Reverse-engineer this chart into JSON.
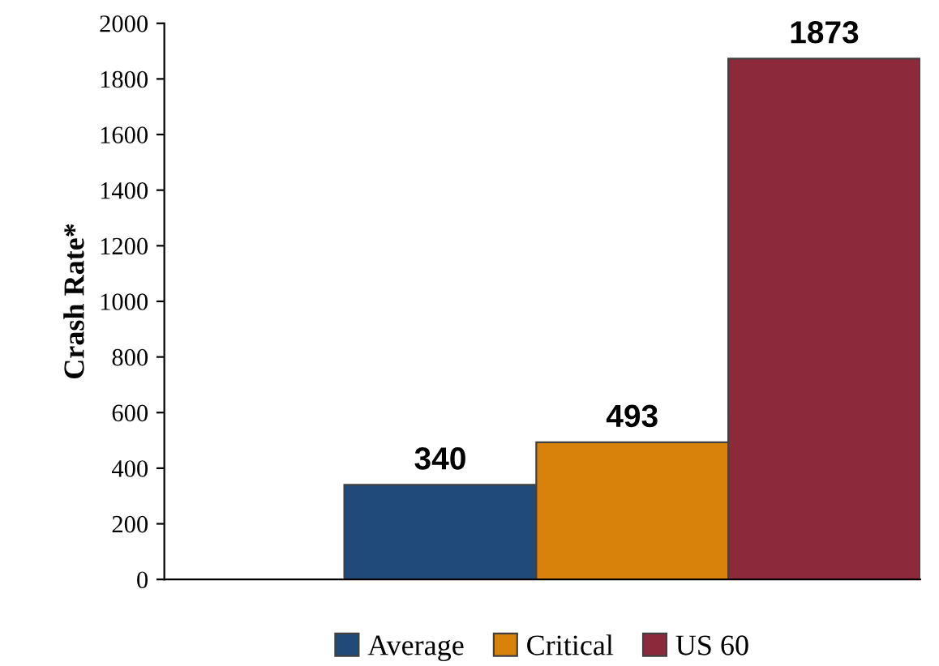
{
  "chart_data": {
    "type": "bar",
    "ylabel": "Crash Rate*",
    "categories": [
      null
    ],
    "series": [
      {
        "name": "Average",
        "color": "#1f4a7a",
        "values": [
          340
        ]
      },
      {
        "name": "Critical",
        "color": "#d8820c",
        "values": [
          493
        ]
      },
      {
        "name": "US 60",
        "color": "#8c2a3b",
        "values": [
          1873
        ]
      }
    ],
    "ylim": [
      0,
      2000
    ],
    "yticks": [
      0,
      200,
      400,
      600,
      800,
      1000,
      1200,
      1400,
      1600,
      1800,
      2000
    ],
    "data_labels": true,
    "legend": "bottom",
    "grid": false
  }
}
